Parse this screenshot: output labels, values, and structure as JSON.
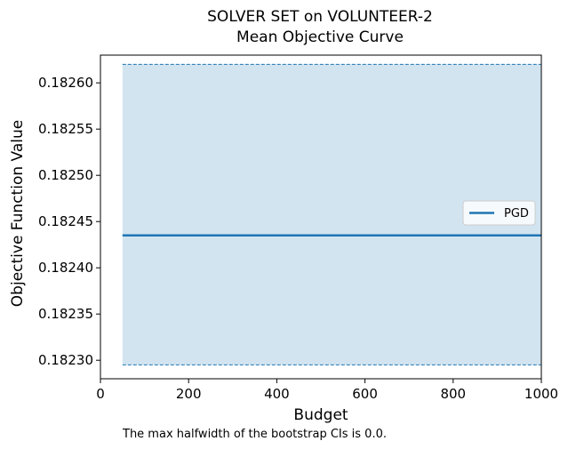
{
  "chart_data": {
    "type": "line",
    "title": "SOLVER SET on VOLUNTEER-2",
    "subtitle": "Mean Objective Curve",
    "xlabel": "Budget",
    "ylabel": "Objective Function Value",
    "xlim": [
      0,
      1000
    ],
    "ylim": [
      0.18228,
      0.18263
    ],
    "x_ticks": [
      0,
      200,
      400,
      600,
      800,
      1000
    ],
    "x_tick_labels": [
      "0",
      "200",
      "400",
      "600",
      "800",
      "1000"
    ],
    "y_ticks": [
      0.1823,
      0.18235,
      0.1824,
      0.18245,
      0.1825,
      0.18255,
      0.1826
    ],
    "y_tick_labels": [
      "0.18230",
      "0.18235",
      "0.18240",
      "0.18245",
      "0.18250",
      "0.18255",
      "0.18260"
    ],
    "grid": false,
    "legend_position": "center-right",
    "series": [
      {
        "name": "PGD",
        "color": "#1f77b4",
        "x": [
          50,
          1000
        ],
        "y": [
          0.182435,
          0.182435
        ],
        "ci_lower": [
          0.182295,
          0.182295
        ],
        "ci_upper": [
          0.18262,
          0.18262
        ]
      }
    ],
    "footnote": "The max halfwidth of the bootstrap CIs is 0.0."
  }
}
